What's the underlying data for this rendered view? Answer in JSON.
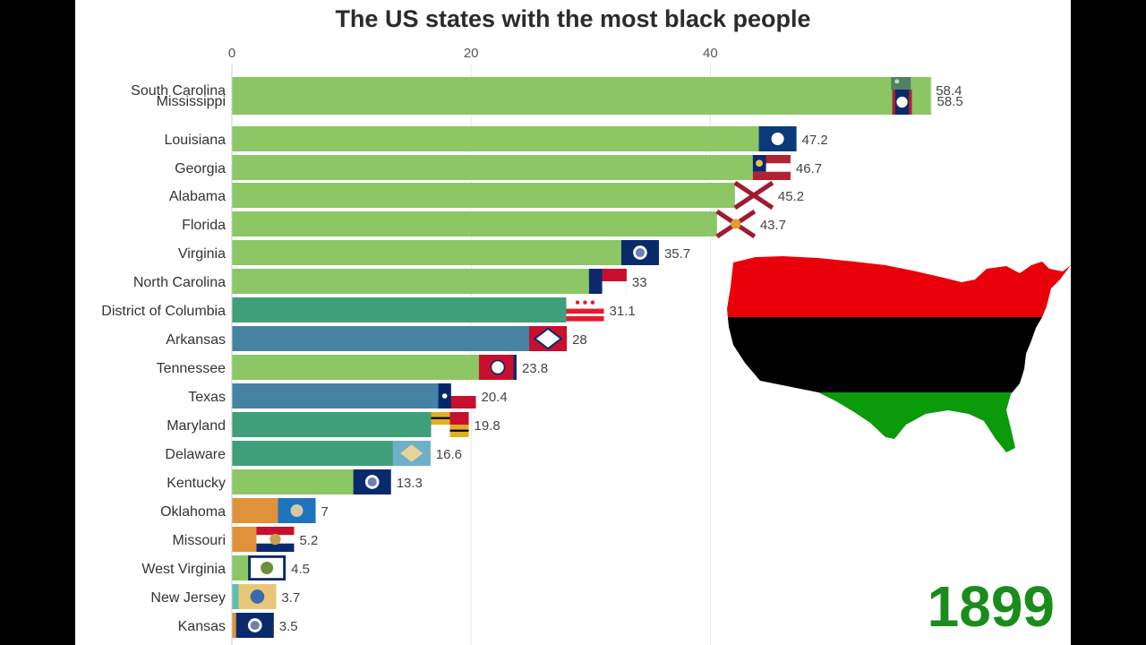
{
  "chart_data": {
    "type": "bar",
    "orientation": "horizontal",
    "title": "The US states with the most black people",
    "xlim": [
      0,
      62
    ],
    "xticks": [
      0,
      20,
      40
    ],
    "grid": true,
    "legend": "none",
    "period_label": "1899",
    "categories": [
      "South Carolina",
      "Mississippi",
      "Louisiana",
      "Georgia",
      "Alabama",
      "Florida",
      "Virginia",
      "North Carolina",
      "District of Columbia",
      "Arkansas",
      "Tennessee",
      "Texas",
      "Maryland",
      "Delaware",
      "Kentucky",
      "Oklahoma",
      "Missouri",
      "West Virginia",
      "New Jersey",
      "Kansas"
    ],
    "values": [
      58.4,
      58.5,
      47.2,
      46.7,
      45.2,
      43.7,
      35.7,
      33,
      31.1,
      28,
      23.8,
      20.4,
      19.8,
      16.6,
      13.3,
      7,
      5.2,
      4.5,
      3.7,
      3.5
    ],
    "value_labels": [
      "58.4",
      "58.5",
      "47.2",
      "46.7",
      "45.2",
      "43.7",
      "35.7",
      "33",
      "31.1",
      "28",
      "23.8",
      "20.4",
      "19.8",
      "16.6",
      "13.3",
      "7",
      "5.2",
      "4.5",
      "3.7",
      "3.5"
    ],
    "bar_colors": [
      "#8cc665",
      "#8cc665",
      "#8cc665",
      "#8cc665",
      "#8cc665",
      "#8cc665",
      "#8cc665",
      "#8cc665",
      "#3f9f7a",
      "#4682a3",
      "#8cc665",
      "#4682a3",
      "#3f9f7a",
      "#3f9f7a",
      "#8cc665",
      "#e0923a",
      "#e0923a",
      "#8cc665",
      "#5bbfb0",
      "#e0923a"
    ],
    "flag_icons": [
      "south-carolina-flag-icon",
      "mississippi-flag-icon",
      "louisiana-flag-icon",
      "georgia-flag-icon",
      "alabama-flag-icon",
      "florida-flag-icon",
      "virginia-flag-icon",
      "north-carolina-flag-icon",
      "district-of-columbia-flag-icon",
      "arkansas-flag-icon",
      "tennessee-flag-icon",
      "texas-flag-icon",
      "maryland-flag-icon",
      "delaware-flag-icon",
      "kentucky-flag-icon",
      "oklahoma-flag-icon",
      "missouri-flag-icon",
      "west-virginia-flag-icon",
      "new-jersey-flag-icon",
      "kansas-flag-icon"
    ]
  },
  "decoration": {
    "map_icon": "us-map-pan-african-flag-icon",
    "map_colors": [
      "#e8000b",
      "#000000",
      "#0a9a0a"
    ]
  }
}
